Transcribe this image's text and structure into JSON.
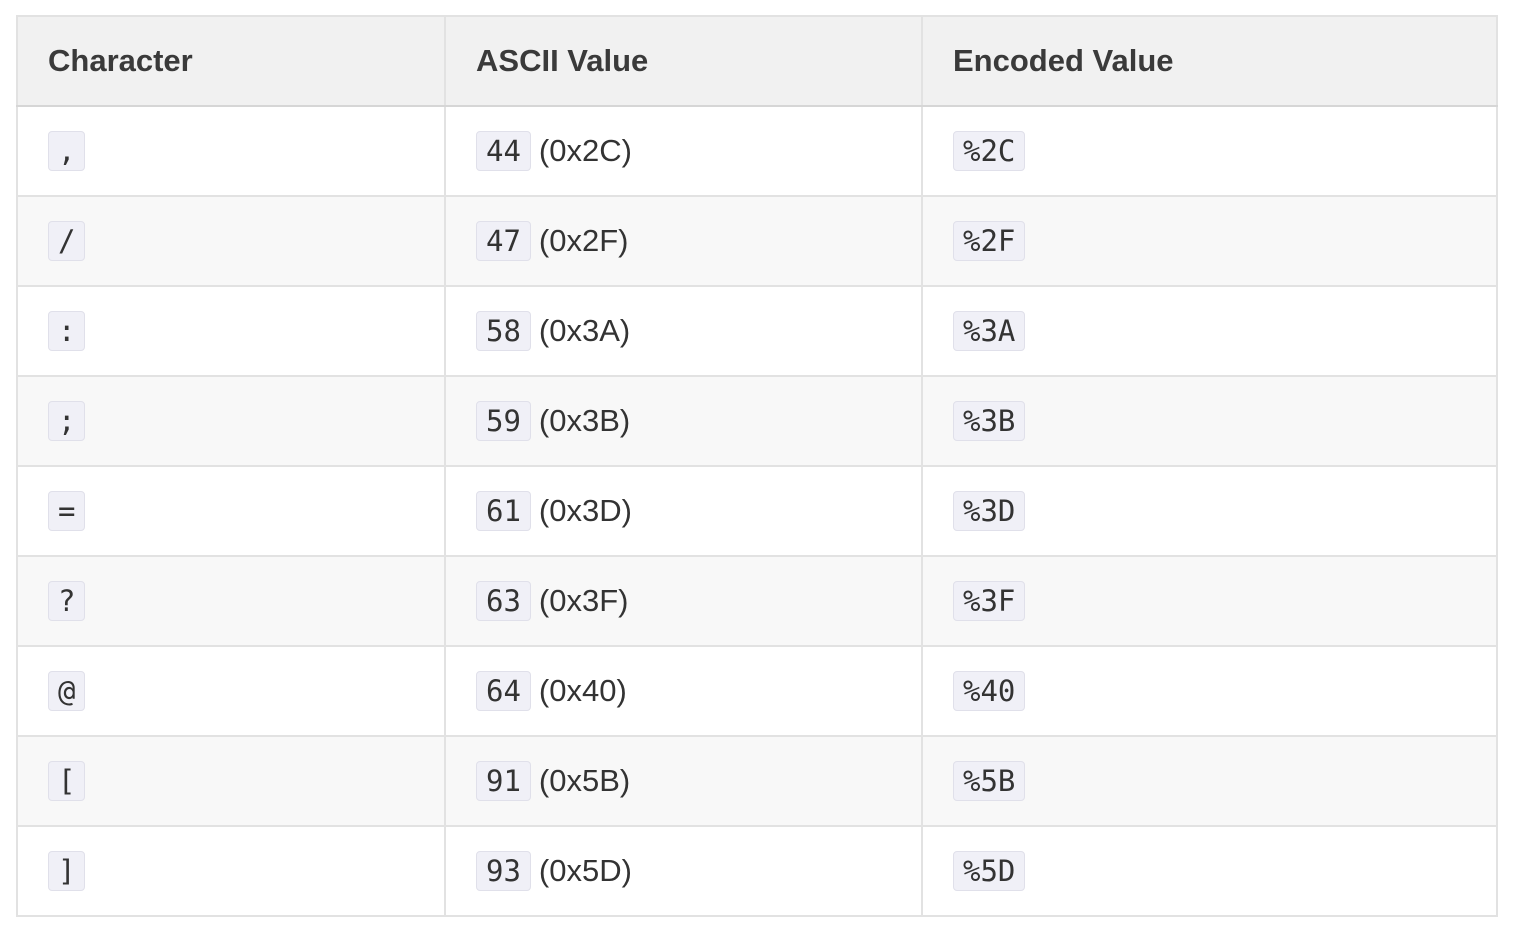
{
  "table": {
    "headers": {
      "character": "Character",
      "ascii": "ASCII Value",
      "encoded": "Encoded Value"
    },
    "rows": [
      {
        "char": ",",
        "dec": "44",
        "hex": "(0x2C)",
        "enc": "%2C"
      },
      {
        "char": "/",
        "dec": "47",
        "hex": "(0x2F)",
        "enc": "%2F"
      },
      {
        "char": ":",
        "dec": "58",
        "hex": "(0x3A)",
        "enc": "%3A"
      },
      {
        "char": ";",
        "dec": "59",
        "hex": "(0x3B)",
        "enc": "%3B"
      },
      {
        "char": "=",
        "dec": "61",
        "hex": "(0x3D)",
        "enc": "%3D"
      },
      {
        "char": "?",
        "dec": "63",
        "hex": "(0x3F)",
        "enc": "%3F"
      },
      {
        "char": "@",
        "dec": "64",
        "hex": "(0x40)",
        "enc": "%40"
      },
      {
        "char": "[",
        "dec": "91",
        "hex": "(0x5B)",
        "enc": "%5B"
      },
      {
        "char": "]",
        "dec": "93",
        "hex": "(0x5D)",
        "enc": "%5D"
      }
    ]
  }
}
